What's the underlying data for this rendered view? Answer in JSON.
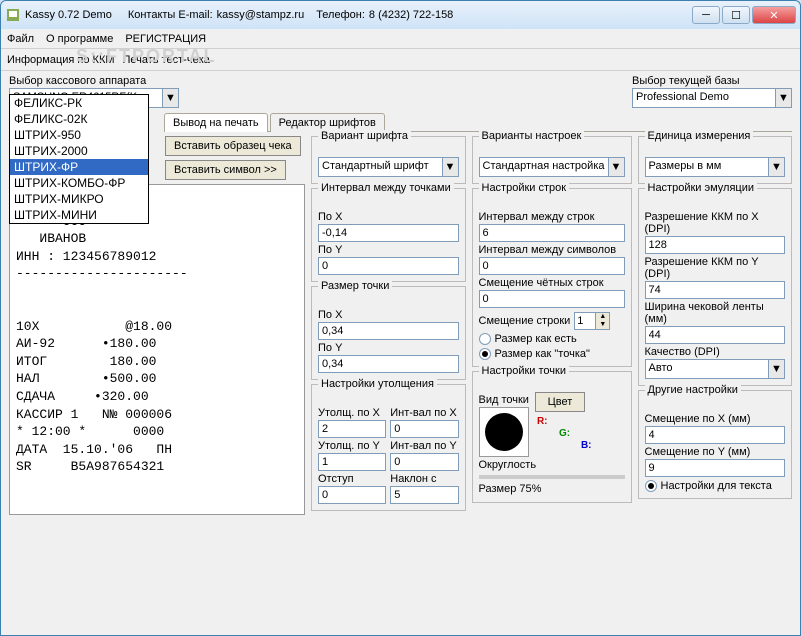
{
  "titlebar": {
    "title": "Kassy 0.72 Demo",
    "contact_label": "Контакты E-mail:",
    "email": "kassy@stampz.ru",
    "phone_label": "Телефон:",
    "phone": "8 (4232) 722-158"
  },
  "menu": {
    "file": "Файл",
    "about": "О программе",
    "register": "РЕГИСТРАЦИЯ"
  },
  "toolbar": {
    "info": "Информация по ККМ",
    "testprint": "Печать тест-чека"
  },
  "selectors": {
    "kkm_label": "Выбор кассового аппарата",
    "kkm_value": "SAMSUNG ER4615RF(K",
    "db_label": "Выбор текущей базы",
    "db_value": "Professional Demo"
  },
  "kkm_list": [
    "ФЕЛИКС-РК",
    "ФЕЛИКС-02К",
    "ШТРИХ-950",
    "ШТРИХ-2000",
    "ШТРИХ-ФР",
    "ШТРИХ-КОМБО-ФР",
    "ШТРИХ-МИКРО",
    "ШТРИХ-МИНИ"
  ],
  "kkm_selected_index": 4,
  "tabs": {
    "print": "Вывод на печать",
    "font": "Редактор шрифтов"
  },
  "buttons": {
    "sample": "Вставить образец чека",
    "symbol": "Вставить символ >>"
  },
  "font": {
    "variant_label": "Вариант шрифта",
    "variant_value": "Стандартный шрифт"
  },
  "settings": {
    "label": "Варианты настроек",
    "value": "Стандартная настройка"
  },
  "units": {
    "label": "Единица измерения",
    "value": "Размеры в мм"
  },
  "interval": {
    "legend": "Интервал между точками",
    "px_label": "По X",
    "px_value": "-0,14",
    "py_label": "По Y",
    "py_value": "0"
  },
  "pointsize": {
    "legend": "Размер точки",
    "px_label": "По X",
    "px_value": "0,34",
    "py_label": "По Y",
    "py_value": "0,34"
  },
  "lines": {
    "legend": "Настройки строк",
    "line_int_label": "Интервал между строк",
    "line_int": "6",
    "char_int_label": "Интервал между символов",
    "char_int": "0",
    "even_off_label": "Смещение чётных строк",
    "even_off": "0",
    "row_off_label": "Смещение строки",
    "row_off": "1",
    "r1": "Размер как есть",
    "r2": "Размер как \"точка\""
  },
  "emul": {
    "legend": "Настройки эмуляции",
    "dpix_label": "Разрешение ККМ по X (DPI)",
    "dpix": "128",
    "dpiy_label": "Разрешение ККМ по Y (DPI)",
    "dpiy": "74",
    "width_label": "Ширина чековой ленты (мм)",
    "width": "44",
    "quality_label": "Качество (DPI)",
    "quality": "Авто"
  },
  "bold": {
    "legend": "Настройки утолщения",
    "ux_label": "Утолщ. по X",
    "ux": "2",
    "ix_label": "Инт-вал по X",
    "ix": "0",
    "uy_label": "Утолщ. по Y",
    "uy": "1",
    "iy_label": "Инт-вал по Y",
    "iy": "0",
    "indent_label": "Отступ",
    "indent": "0",
    "slant_label": "Наклон с",
    "slant": "5"
  },
  "point": {
    "legend": "Настройки точки",
    "view_label": "Вид точки",
    "color_btn": "Цвет",
    "round_label": "Округлость",
    "size_label": "Размер 75%",
    "r": "R:",
    "g": "G:",
    "b": "B:"
  },
  "other": {
    "legend": "Другие настройки",
    "ox_label": "Смещение по X (мм)",
    "ox": "4",
    "oy_label": "Смещение по Y (мм)",
    "oy": "9",
    "text_settings": "Настройки для текста"
  },
  "receipt": "\n      ООО\n   ИВАНОВ\nИНН : 123456789012\n----------------------\n\n\n10X           @18.00\nАИ-92      •180.00\nИТОГ        180.00\nНАЛ        •500.00\nСДАЧА     •320.00\nКАССИР 1   N№ 000006\n* 12:00 *      0000\nДАТА  15.10.'06   ПН\nSR     B5A987654321",
  "watermark": "S::FTPORTAL"
}
